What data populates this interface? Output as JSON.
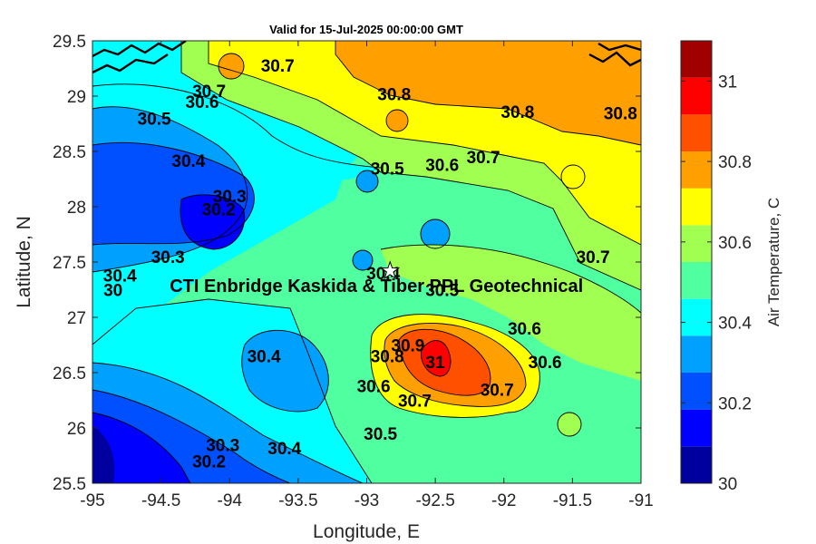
{
  "chart_data": {
    "type": "heatmap",
    "title": "Valid for 15-Jul-2025 00:00:00 GMT",
    "xlabel": "Longitude, E",
    "ylabel": "Latitude, N",
    "xlim": [
      -95,
      -91
    ],
    "ylim": [
      25.5,
      29.5
    ],
    "x_ticks": [
      "-95",
      "-94.5",
      "-94",
      "-93.5",
      "-93",
      "-92.5",
      "-92",
      "-91.5",
      "-91"
    ],
    "y_ticks": [
      "29.5",
      "29",
      "28.5",
      "28",
      "27.5",
      "27",
      "26.5",
      "26",
      "25.5"
    ],
    "colorbar": {
      "label": "Air Temperature, C",
      "range": [
        30,
        31.1
      ],
      "ticks": [
        "31",
        "30.8",
        "30.6",
        "30.4",
        "30.2",
        "30"
      ],
      "colors": [
        "#00009f",
        "#0000ff",
        "#0050ff",
        "#00a0ff",
        "#00ffff",
        "#50ffa0",
        "#a0ff50",
        "#ffff00",
        "#ffa000",
        "#ff5000",
        "#ff0000",
        "#a00000"
      ]
    },
    "annotation": {
      "label": "CTI Enbridge  Kaskida & Tiber PPL Geotechnical",
      "marker": "star",
      "lon": -92.83,
      "lat": 27.42
    },
    "contour_labels": [
      {
        "text": "30.7",
        "lon": -93.65,
        "lat": 29.28
      },
      {
        "text": "30.7",
        "lon": -94.15,
        "lat": 29.05
      },
      {
        "text": "30.6",
        "lon": -94.2,
        "lat": 28.95
      },
      {
        "text": "30.8",
        "lon": -92.8,
        "lat": 29.02
      },
      {
        "text": "30.8",
        "lon": -91.9,
        "lat": 28.86
      },
      {
        "text": "30.8",
        "lon": -91.15,
        "lat": 28.85
      },
      {
        "text": "30.5",
        "lon": -94.55,
        "lat": 28.8
      },
      {
        "text": "30.4",
        "lon": -94.3,
        "lat": 28.42
      },
      {
        "text": "30.5",
        "lon": -92.85,
        "lat": 28.35
      },
      {
        "text": "30.6",
        "lon": -92.45,
        "lat": 28.38
      },
      {
        "text": "30.7",
        "lon": -92.15,
        "lat": 28.45
      },
      {
        "text": "30.3",
        "lon": -94.0,
        "lat": 28.1
      },
      {
        "text": "30.2",
        "lon": -94.08,
        "lat": 27.98
      },
      {
        "text": "30.3",
        "lon": -94.45,
        "lat": 27.55
      },
      {
        "text": "30.4",
        "lon": -94.8,
        "lat": 27.38
      },
      {
        "text": "30",
        "lon": -94.85,
        "lat": 27.25
      },
      {
        "text": "30.4",
        "lon": -92.88,
        "lat": 27.4
      },
      {
        "text": "30.5",
        "lon": -92.45,
        "lat": 27.25
      },
      {
        "text": "30.7",
        "lon": -91.35,
        "lat": 27.55
      },
      {
        "text": "30.6",
        "lon": -91.85,
        "lat": 26.9
      },
      {
        "text": "30.6",
        "lon": -91.7,
        "lat": 26.6
      },
      {
        "text": "30.4",
        "lon": -93.75,
        "lat": 26.65
      },
      {
        "text": "30.8",
        "lon": -92.85,
        "lat": 26.65
      },
      {
        "text": "30.9",
        "lon": -92.7,
        "lat": 26.75
      },
      {
        "text": "31",
        "lon": -92.5,
        "lat": 26.6
      },
      {
        "text": "30.6",
        "lon": -92.95,
        "lat": 26.38
      },
      {
        "text": "30.7",
        "lon": -92.65,
        "lat": 26.25
      },
      {
        "text": "30.7",
        "lon": -92.05,
        "lat": 26.35
      },
      {
        "text": "30.5",
        "lon": -92.9,
        "lat": 25.95
      },
      {
        "text": "30.3",
        "lon": -94.05,
        "lat": 25.85
      },
      {
        "text": "30.4",
        "lon": -93.6,
        "lat": 25.82
      },
      {
        "text": "30.2",
        "lon": -94.15,
        "lat": 25.7
      }
    ]
  }
}
